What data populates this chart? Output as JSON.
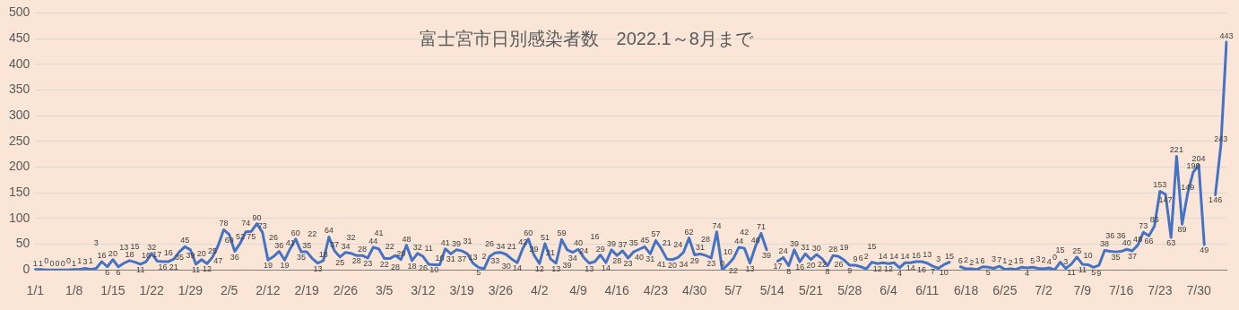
{
  "chart_data": {
    "type": "line",
    "title": "富士宮市日別感染者数　2022.1～8月まで",
    "categories": [
      "1/1",
      null,
      null,
      null,
      null,
      null,
      null,
      "1/8",
      null,
      null,
      null,
      null,
      null,
      null,
      "1/15",
      null,
      null,
      null,
      null,
      null,
      null,
      "1/22",
      null,
      null,
      null,
      null,
      null,
      null,
      "1/29",
      null,
      null,
      null,
      null,
      null,
      null,
      "2/5",
      null,
      null,
      null,
      null,
      null,
      null,
      "2/12",
      null,
      null,
      null,
      null,
      null,
      null,
      "2/19",
      null,
      null,
      null,
      null,
      null,
      null,
      "2/26",
      null,
      null,
      null,
      null,
      null,
      null,
      "3/5",
      null,
      null,
      null,
      null,
      null,
      null,
      "3/12",
      null,
      null,
      null,
      null,
      null,
      null,
      "3/19",
      null,
      null,
      null,
      null,
      null,
      null,
      "3/26",
      null,
      null,
      null,
      null,
      null,
      null,
      "4/2",
      null,
      null,
      null,
      null,
      null,
      null,
      "4/9",
      null,
      null,
      null,
      null,
      null,
      null,
      "4/16",
      null,
      null,
      null,
      null,
      null,
      null,
      "4/23",
      null,
      null,
      null,
      null,
      null,
      null,
      "4/30",
      null,
      null,
      null,
      null,
      null,
      null,
      "5/7",
      null,
      null,
      null,
      null,
      null,
      null,
      "5/14",
      null,
      null,
      null,
      null,
      null,
      null,
      "5/21",
      null,
      null,
      null,
      null,
      null,
      null,
      "5/28",
      null,
      null,
      null,
      null,
      null,
      null,
      "6/4",
      null,
      null,
      null,
      null,
      null,
      null,
      "6/11",
      null,
      null,
      null,
      null,
      null,
      null,
      "6/18",
      null,
      null,
      null,
      null,
      null,
      null,
      "6/25",
      null,
      null,
      null,
      null,
      null,
      null,
      "7/2",
      null,
      null,
      null,
      null,
      null,
      null,
      "7/9",
      null,
      null,
      null,
      null,
      null,
      null,
      "7/16",
      null,
      null,
      null,
      null,
      null,
      null,
      "7/23",
      null,
      null,
      null,
      null,
      null,
      null,
      "7/30",
      null,
      null,
      null,
      null,
      null
    ],
    "series": [
      {
        "color": "#4472c4",
        "values": [
          1,
          1,
          0,
          0,
          0,
          0,
          0,
          1,
          1,
          3,
          1,
          3,
          16,
          6,
          20,
          6,
          13,
          18,
          15,
          11,
          16,
          32,
          17,
          16,
          16,
          21,
          35,
          45,
          39,
          11,
          20,
          12,
          25,
          47,
          78,
          69,
          36,
          52,
          74,
          75,
          90,
          73,
          19,
          26,
          36,
          19,
          41,
          60,
          35,
          35,
          22,
          13,
          18,
          64,
          37,
          25,
          34,
          32,
          28,
          28,
          23,
          44,
          41,
          22,
          22,
          28,
          20,
          48,
          18,
          32,
          26,
          11,
          10,
          10,
          41,
          31,
          39,
          37,
          31,
          13,
          5,
          2,
          26,
          33,
          34,
          30,
          21,
          14,
          42,
          60,
          29,
          12,
          51,
          21,
          13,
          59,
          39,
          34,
          40,
          24,
          13,
          16,
          29,
          14,
          39,
          28,
          37,
          23,
          35,
          40,
          45,
          31,
          57,
          41,
          21,
          20,
          24,
          34,
          62,
          29,
          31,
          28,
          23,
          74,
          0,
          10,
          22,
          44,
          42,
          13,
          46,
          71,
          39,
          null,
          17,
          24,
          8,
          39,
          16,
          31,
          20,
          30,
          22,
          8,
          28,
          26,
          19,
          9,
          9,
          6,
          2,
          15,
          12,
          14,
          12,
          14,
          4,
          14,
          14,
          16,
          16,
          13,
          7,
          3,
          10,
          15,
          null,
          6,
          2,
          2,
          1,
          6,
          5,
          3,
          7,
          1,
          2,
          1,
          5,
          4,
          5,
          3,
          2,
          4,
          0,
          15,
          3,
          11,
          25,
          11,
          10,
          5,
          9,
          38,
          36,
          35,
          36,
          40,
          37,
          48,
          73,
          66,
          85,
          153,
          147,
          63,
          221,
          89,
          149,
          190,
          204,
          49,
          null,
          146,
          243,
          443
        ]
      }
    ],
    "ylim": [
      0,
      500
    ],
    "yticks": [
      0,
      50,
      100,
      150,
      200,
      250,
      300,
      350,
      400,
      450,
      500
    ],
    "grid": "y",
    "legend": false,
    "marker": "none",
    "line_style": "solid",
    "data_labels": true
  }
}
